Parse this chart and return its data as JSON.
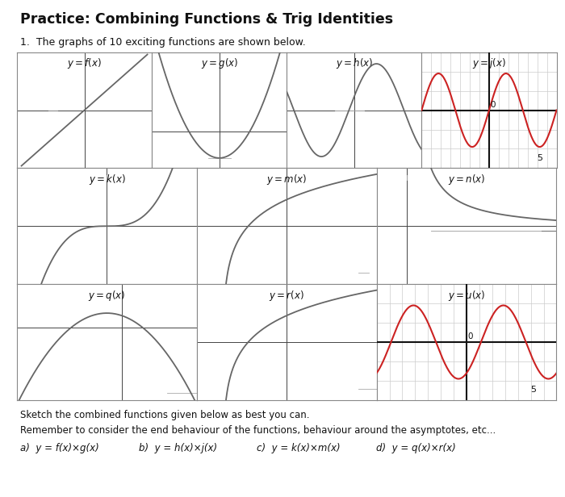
{
  "title": "Practice: Combining Functions & Trig Identities",
  "subtitle": "1.  The graphs of 10 exciting functions are shown below.",
  "bottom_text1": "Sketch the combined functions given below as best you can.",
  "bottom_text2": "Remember to consider the end behaviour of the functions, behaviour around the asymptotes, etc...",
  "bottom_labels": [
    "a)  y = f(x)×g(x)",
    "b)  y = h(x)×j(x)",
    "c)  y = k(x)×m(x)",
    "d)  y = q(x)×r(x)"
  ],
  "background": "#ffffff",
  "grid_color": "#cccccc",
  "axis_color": "#333333",
  "border_color": "#888888",
  "curve_color": "#666666",
  "red_color": "#cc2222"
}
